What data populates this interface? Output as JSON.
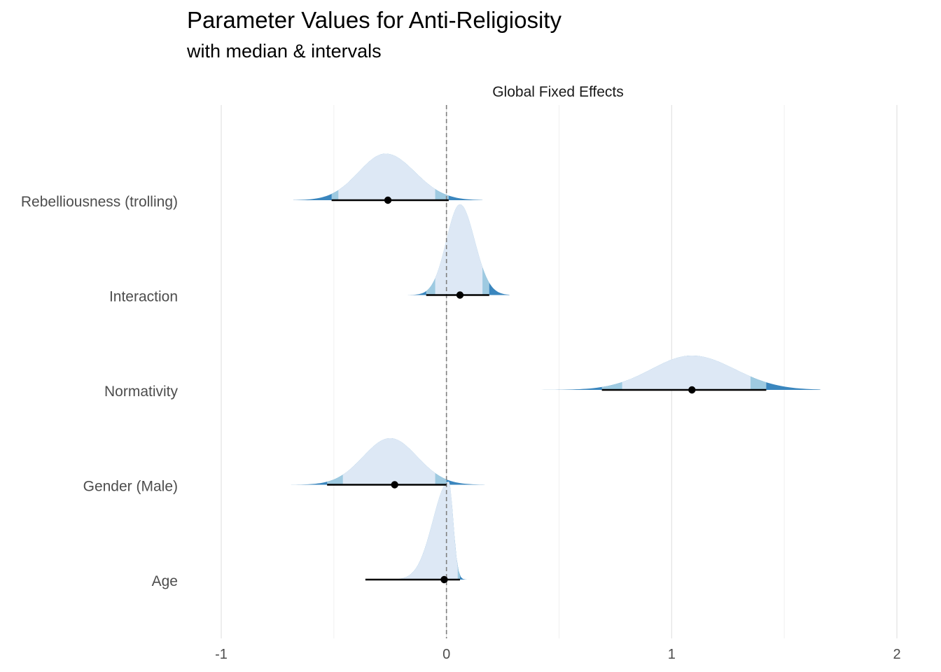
{
  "title": "Parameter Values for Anti-Religiosity",
  "subtitle": "with median & intervals",
  "chart_data": {
    "type": "halfeye",
    "facet": "Global Fixed Effects",
    "xlim": [
      -1,
      2
    ],
    "x_ticks": [
      -1,
      0,
      1,
      2
    ],
    "x_tick_labels": [
      "-1",
      "0",
      "1",
      "2"
    ],
    "reference_line": 0,
    "grid": true,
    "colors": {
      "light": "#dde8f5",
      "mid": "#9ecae1",
      "dark": "#3a86be",
      "point": "#000000",
      "refline": "#808080"
    },
    "parameters": [
      {
        "label": "Rebelliousness (trolling)",
        "median": -0.26,
        "interval_low": -0.51,
        "interval_high": 0.01,
        "inner": [
          -0.48,
          -0.05
        ],
        "outer": [
          -0.68,
          0.16
        ],
        "peak_x": -0.27,
        "spread_left": 0.12,
        "spread_right": 0.13,
        "peak_height": 0.38
      },
      {
        "label": "Interaction",
        "median": 0.06,
        "interval_low": -0.09,
        "interval_high": 0.19,
        "inner": [
          -0.05,
          0.16
        ],
        "outer": [
          -0.18,
          0.28
        ],
        "peak_x": 0.06,
        "spread_left": 0.06,
        "spread_right": 0.065,
        "peak_height": 0.74
      },
      {
        "label": "Normativity",
        "median": 1.09,
        "interval_low": 0.69,
        "interval_high": 1.42,
        "inner": [
          0.78,
          1.35
        ],
        "outer": [
          0.42,
          1.66
        ],
        "peak_x": 1.09,
        "spread_left": 0.18,
        "spread_right": 0.19,
        "peak_height": 0.28
      },
      {
        "label": "Gender (Male)",
        "median": -0.23,
        "interval_low": -0.53,
        "interval_high": 0.0,
        "inner": [
          -0.46,
          -0.05
        ],
        "outer": [
          -0.69,
          0.17
        ],
        "peak_x": -0.25,
        "spread_left": 0.12,
        "spread_right": 0.12,
        "peak_height": 0.38
      },
      {
        "label": "Age",
        "median": -0.01,
        "interval_low": -0.36,
        "interval_high": 0.06,
        "inner": [
          -0.26,
          0.05
        ],
        "outer": [
          -0.63,
          0.13
        ],
        "peak_x": 0.01,
        "spread_left": 0.07,
        "spread_right": 0.02,
        "peak_height": 0.8
      }
    ]
  }
}
